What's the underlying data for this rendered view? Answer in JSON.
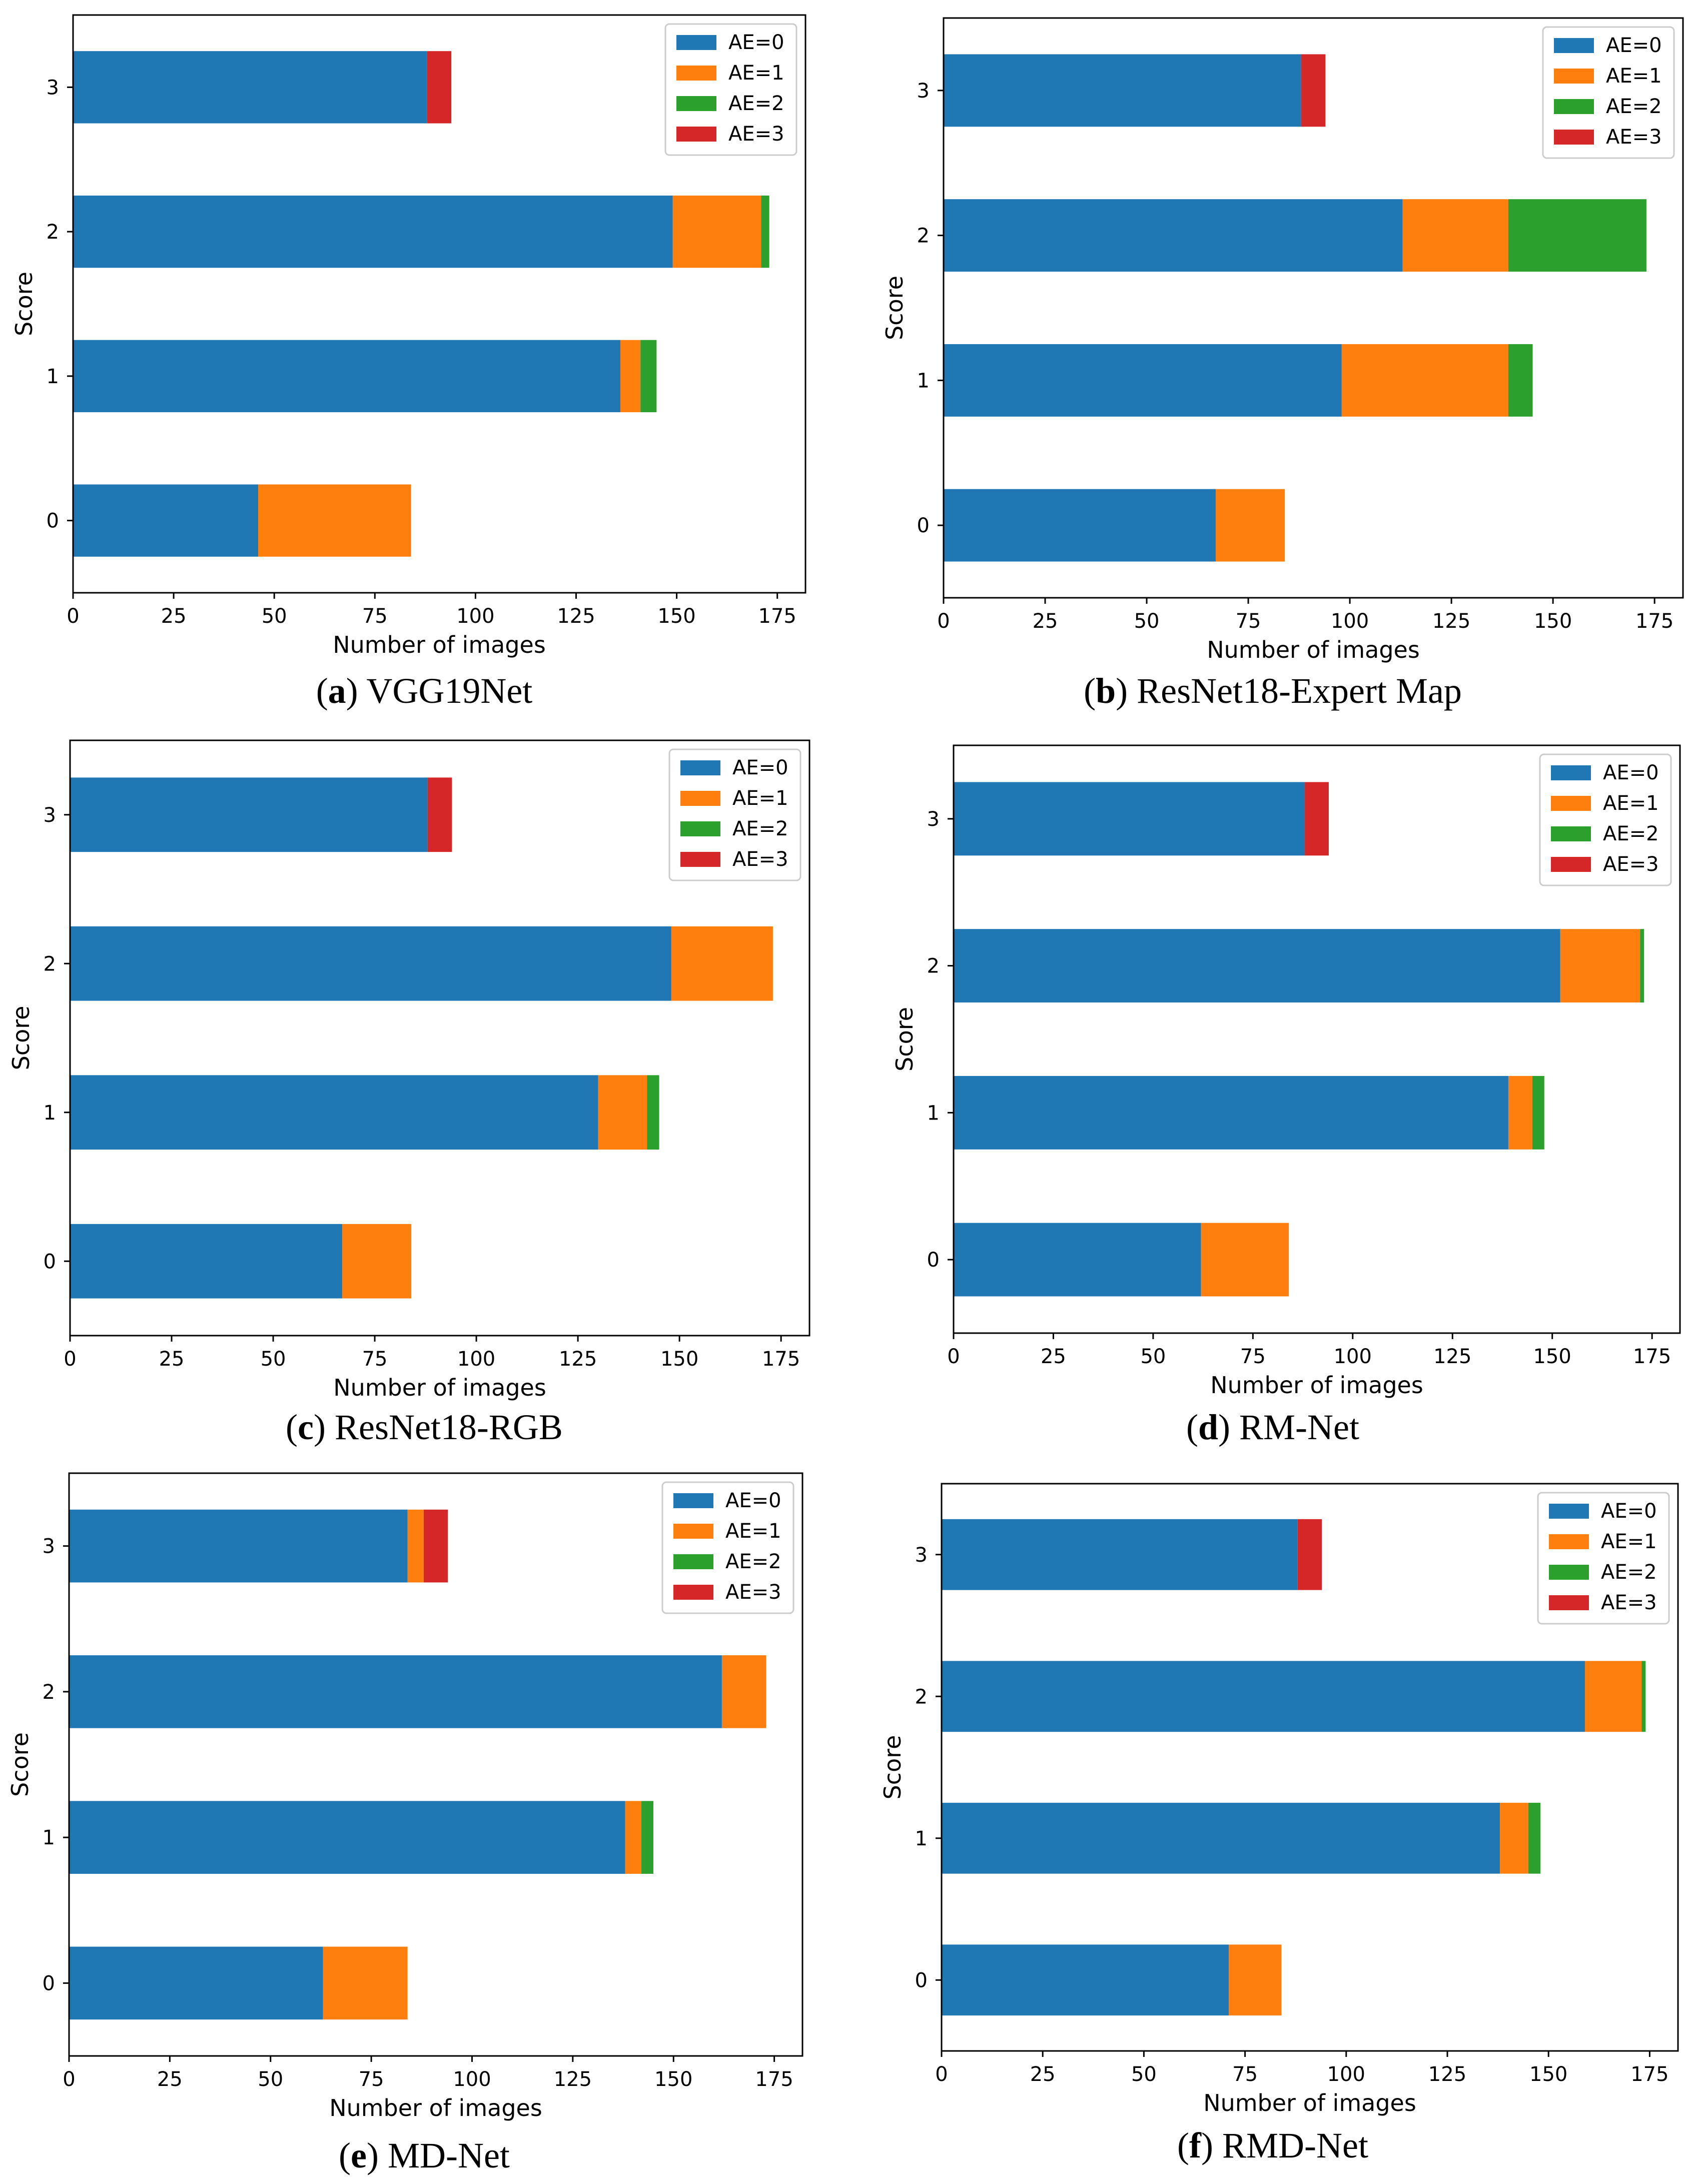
{
  "legend_colors": {
    "AE=0": "#1f77b4",
    "AE=1": "#ff7f0e",
    "AE=2": "#2ca02c",
    "AE=3": "#d62728"
  },
  "chart_data": [
    {
      "type": "bar",
      "orientation": "horizontal",
      "stacked": true,
      "caption_letter": "a",
      "caption_name": "VGG19Net",
      "xlabel": "Number of images",
      "ylabel": "Score",
      "categories": [
        "0",
        "1",
        "2",
        "3"
      ],
      "xticks": [
        0,
        25,
        50,
        75,
        100,
        125,
        150,
        175
      ],
      "xlim": [
        0,
        182
      ],
      "legend_position": "top-right",
      "series": [
        {
          "name": "AE=0",
          "color": "#1f77b4",
          "values": [
            46,
            136,
            149,
            88
          ]
        },
        {
          "name": "AE=1",
          "color": "#ff7f0e",
          "values": [
            38,
            5,
            22,
            0
          ]
        },
        {
          "name": "AE=2",
          "color": "#2ca02c",
          "values": [
            0,
            4,
            2,
            0
          ]
        },
        {
          "name": "AE=3",
          "color": "#d62728",
          "values": [
            0,
            0,
            0,
            6
          ]
        }
      ]
    },
    {
      "type": "bar",
      "orientation": "horizontal",
      "stacked": true,
      "caption_letter": "b",
      "caption_name": "ResNet18-Expert Map",
      "xlabel": "Number of images",
      "ylabel": "Score",
      "categories": [
        "0",
        "1",
        "2",
        "3"
      ],
      "xticks": [
        0,
        25,
        50,
        75,
        100,
        125,
        150,
        175
      ],
      "xlim": [
        0,
        182
      ],
      "legend_position": "top-right",
      "series": [
        {
          "name": "AE=0",
          "color": "#1f77b4",
          "values": [
            67,
            98,
            113,
            88
          ]
        },
        {
          "name": "AE=1",
          "color": "#ff7f0e",
          "values": [
            17,
            41,
            26,
            0
          ]
        },
        {
          "name": "AE=2",
          "color": "#2ca02c",
          "values": [
            0,
            6,
            34,
            0
          ]
        },
        {
          "name": "AE=3",
          "color": "#d62728",
          "values": [
            0,
            0,
            0,
            6
          ]
        }
      ]
    },
    {
      "type": "bar",
      "orientation": "horizontal",
      "stacked": true,
      "caption_letter": "c",
      "caption_name": "ResNet18-RGB",
      "xlabel": "Number of images",
      "ylabel": "Score",
      "categories": [
        "0",
        "1",
        "2",
        "3"
      ],
      "xticks": [
        0,
        25,
        50,
        75,
        100,
        125,
        150,
        175
      ],
      "xlim": [
        0,
        182
      ],
      "legend_position": "top-right",
      "series": [
        {
          "name": "AE=0",
          "color": "#1f77b4",
          "values": [
            67,
            130,
            148,
            88
          ]
        },
        {
          "name": "AE=1",
          "color": "#ff7f0e",
          "values": [
            17,
            12,
            25,
            0
          ]
        },
        {
          "name": "AE=2",
          "color": "#2ca02c",
          "values": [
            0,
            3,
            0,
            0
          ]
        },
        {
          "name": "AE=3",
          "color": "#d62728",
          "values": [
            0,
            0,
            0,
            6
          ]
        }
      ]
    },
    {
      "type": "bar",
      "orientation": "horizontal",
      "stacked": true,
      "caption_letter": "d",
      "caption_name": "RM-Net",
      "xlabel": "Number of images",
      "ylabel": "Score",
      "categories": [
        "0",
        "1",
        "2",
        "3"
      ],
      "xticks": [
        0,
        25,
        50,
        75,
        100,
        125,
        150,
        175
      ],
      "xlim": [
        0,
        182
      ],
      "legend_position": "top-right",
      "series": [
        {
          "name": "AE=0",
          "color": "#1f77b4",
          "values": [
            62,
            139,
            152,
            88
          ]
        },
        {
          "name": "AE=1",
          "color": "#ff7f0e",
          "values": [
            22,
            6,
            20,
            0
          ]
        },
        {
          "name": "AE=2",
          "color": "#2ca02c",
          "values": [
            0,
            3,
            1,
            0
          ]
        },
        {
          "name": "AE=3",
          "color": "#d62728",
          "values": [
            0,
            0,
            0,
            6
          ]
        }
      ]
    },
    {
      "type": "bar",
      "orientation": "horizontal",
      "stacked": true,
      "caption_letter": "e",
      "caption_name": "MD-Net",
      "xlabel": "Number of images",
      "ylabel": "Score",
      "categories": [
        "0",
        "1",
        "2",
        "3"
      ],
      "xticks": [
        0,
        25,
        50,
        75,
        100,
        125,
        150,
        175
      ],
      "xlim": [
        0,
        182
      ],
      "legend_position": "top-right",
      "series": [
        {
          "name": "AE=0",
          "color": "#1f77b4",
          "values": [
            63,
            138,
            162,
            84
          ]
        },
        {
          "name": "AE=1",
          "color": "#ff7f0e",
          "values": [
            21,
            4,
            11,
            4
          ]
        },
        {
          "name": "AE=2",
          "color": "#2ca02c",
          "values": [
            0,
            3,
            0,
            0
          ]
        },
        {
          "name": "AE=3",
          "color": "#d62728",
          "values": [
            0,
            0,
            0,
            6
          ]
        }
      ]
    },
    {
      "type": "bar",
      "orientation": "horizontal",
      "stacked": true,
      "caption_letter": "f",
      "caption_name": "RMD-Net",
      "xlabel": "Number of images",
      "ylabel": "Score",
      "categories": [
        "0",
        "1",
        "2",
        "3"
      ],
      "xticks": [
        0,
        25,
        50,
        75,
        100,
        125,
        150,
        175
      ],
      "xlim": [
        0,
        182
      ],
      "legend_position": "top-right",
      "series": [
        {
          "name": "AE=0",
          "color": "#1f77b4",
          "values": [
            71,
            138,
            159,
            88
          ]
        },
        {
          "name": "AE=1",
          "color": "#ff7f0e",
          "values": [
            13,
            7,
            14,
            0
          ]
        },
        {
          "name": "AE=2",
          "color": "#2ca02c",
          "values": [
            0,
            3,
            1,
            0
          ]
        },
        {
          "name": "AE=3",
          "color": "#d62728",
          "values": [
            0,
            0,
            0,
            6
          ]
        }
      ]
    }
  ]
}
